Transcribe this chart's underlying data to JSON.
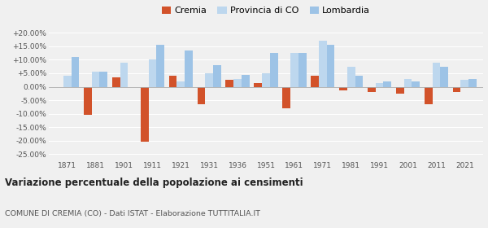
{
  "years": [
    1871,
    1881,
    1901,
    1911,
    1921,
    1931,
    1936,
    1951,
    1961,
    1971,
    1981,
    1991,
    2001,
    2011,
    2021
  ],
  "cremia": [
    0.0,
    -10.5,
    3.5,
    -20.5,
    4.0,
    -6.5,
    2.5,
    1.5,
    -8.0,
    4.0,
    -1.5,
    -2.0,
    -2.5,
    -6.5,
    -2.0
  ],
  "provincia_co": [
    4.0,
    5.5,
    9.0,
    10.0,
    2.0,
    5.0,
    3.0,
    5.0,
    12.5,
    17.0,
    7.5,
    1.5,
    3.0,
    9.0,
    2.5
  ],
  "lombardia": [
    11.0,
    5.5,
    0.0,
    15.5,
    13.5,
    8.0,
    4.5,
    12.5,
    12.5,
    15.5,
    4.0,
    2.0,
    2.0,
    7.5,
    3.0
  ],
  "cremia_color": "#d2522a",
  "provincia_color": "#bdd7ee",
  "lombardia_color": "#9dc3e6",
  "title_bold": "Variazione percentuale della popolazione ai censimenti",
  "subtitle": "COMUNE DI CREMIA (CO) - Dati ISTAT - Elaborazione TUTTITALIA.IT",
  "legend_labels": [
    "Cremia",
    "Provincia di CO",
    "Lombardia"
  ],
  "yticks": [
    -25,
    -20,
    -15,
    -10,
    -5,
    0,
    5,
    10,
    15,
    20
  ],
  "ylim": [
    -27,
    22
  ],
  "background_color": "#f0f0f0"
}
